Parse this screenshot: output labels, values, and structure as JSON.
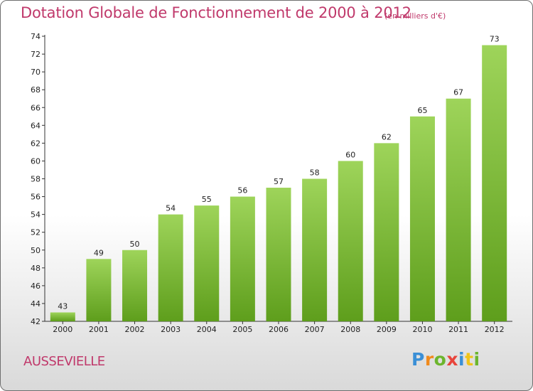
{
  "page": {
    "title": "Dotation Globale de Fonctionnement de 2000 à 2012",
    "subtitle": "(en milliers d'€)",
    "commune": "AUSSEVIELLE",
    "logo_letters": [
      {
        "ch": "P",
        "color": "#3a8fd6"
      },
      {
        "ch": "r",
        "color": "#f08a1c"
      },
      {
        "ch": "o",
        "color": "#6cb52d"
      },
      {
        "ch": "x",
        "color": "#e8453c"
      },
      {
        "ch": "i",
        "color": "#3a8fd6"
      },
      {
        "ch": "t",
        "color": "#f0c419"
      },
      {
        "ch": "i",
        "color": "#6cb52d"
      }
    ]
  },
  "colors": {
    "title": "#c0396b",
    "bar_top": "#9ed45a",
    "bar_bottom": "#5e9e1c",
    "grid": "#d0d0d0"
  },
  "chart_data": {
    "type": "bar",
    "title": "Dotation Globale de Fonctionnement de 2000 à 2012",
    "subtitle": "(en milliers d'€)",
    "xlabel": "",
    "ylabel": "",
    "categories": [
      "2000",
      "2001",
      "2002",
      "2003",
      "2004",
      "2005",
      "2006",
      "2007",
      "2008",
      "2009",
      "2010",
      "2011",
      "2012"
    ],
    "values": [
      43,
      49,
      50,
      54,
      55,
      56,
      57,
      58,
      60,
      62,
      65,
      67,
      73
    ],
    "ylim": [
      42,
      74
    ],
    "yticks": [
      42,
      44,
      46,
      48,
      50,
      52,
      54,
      56,
      58,
      60,
      62,
      64,
      66,
      68,
      70,
      72,
      74
    ],
    "grid": false,
    "legend": "none"
  }
}
